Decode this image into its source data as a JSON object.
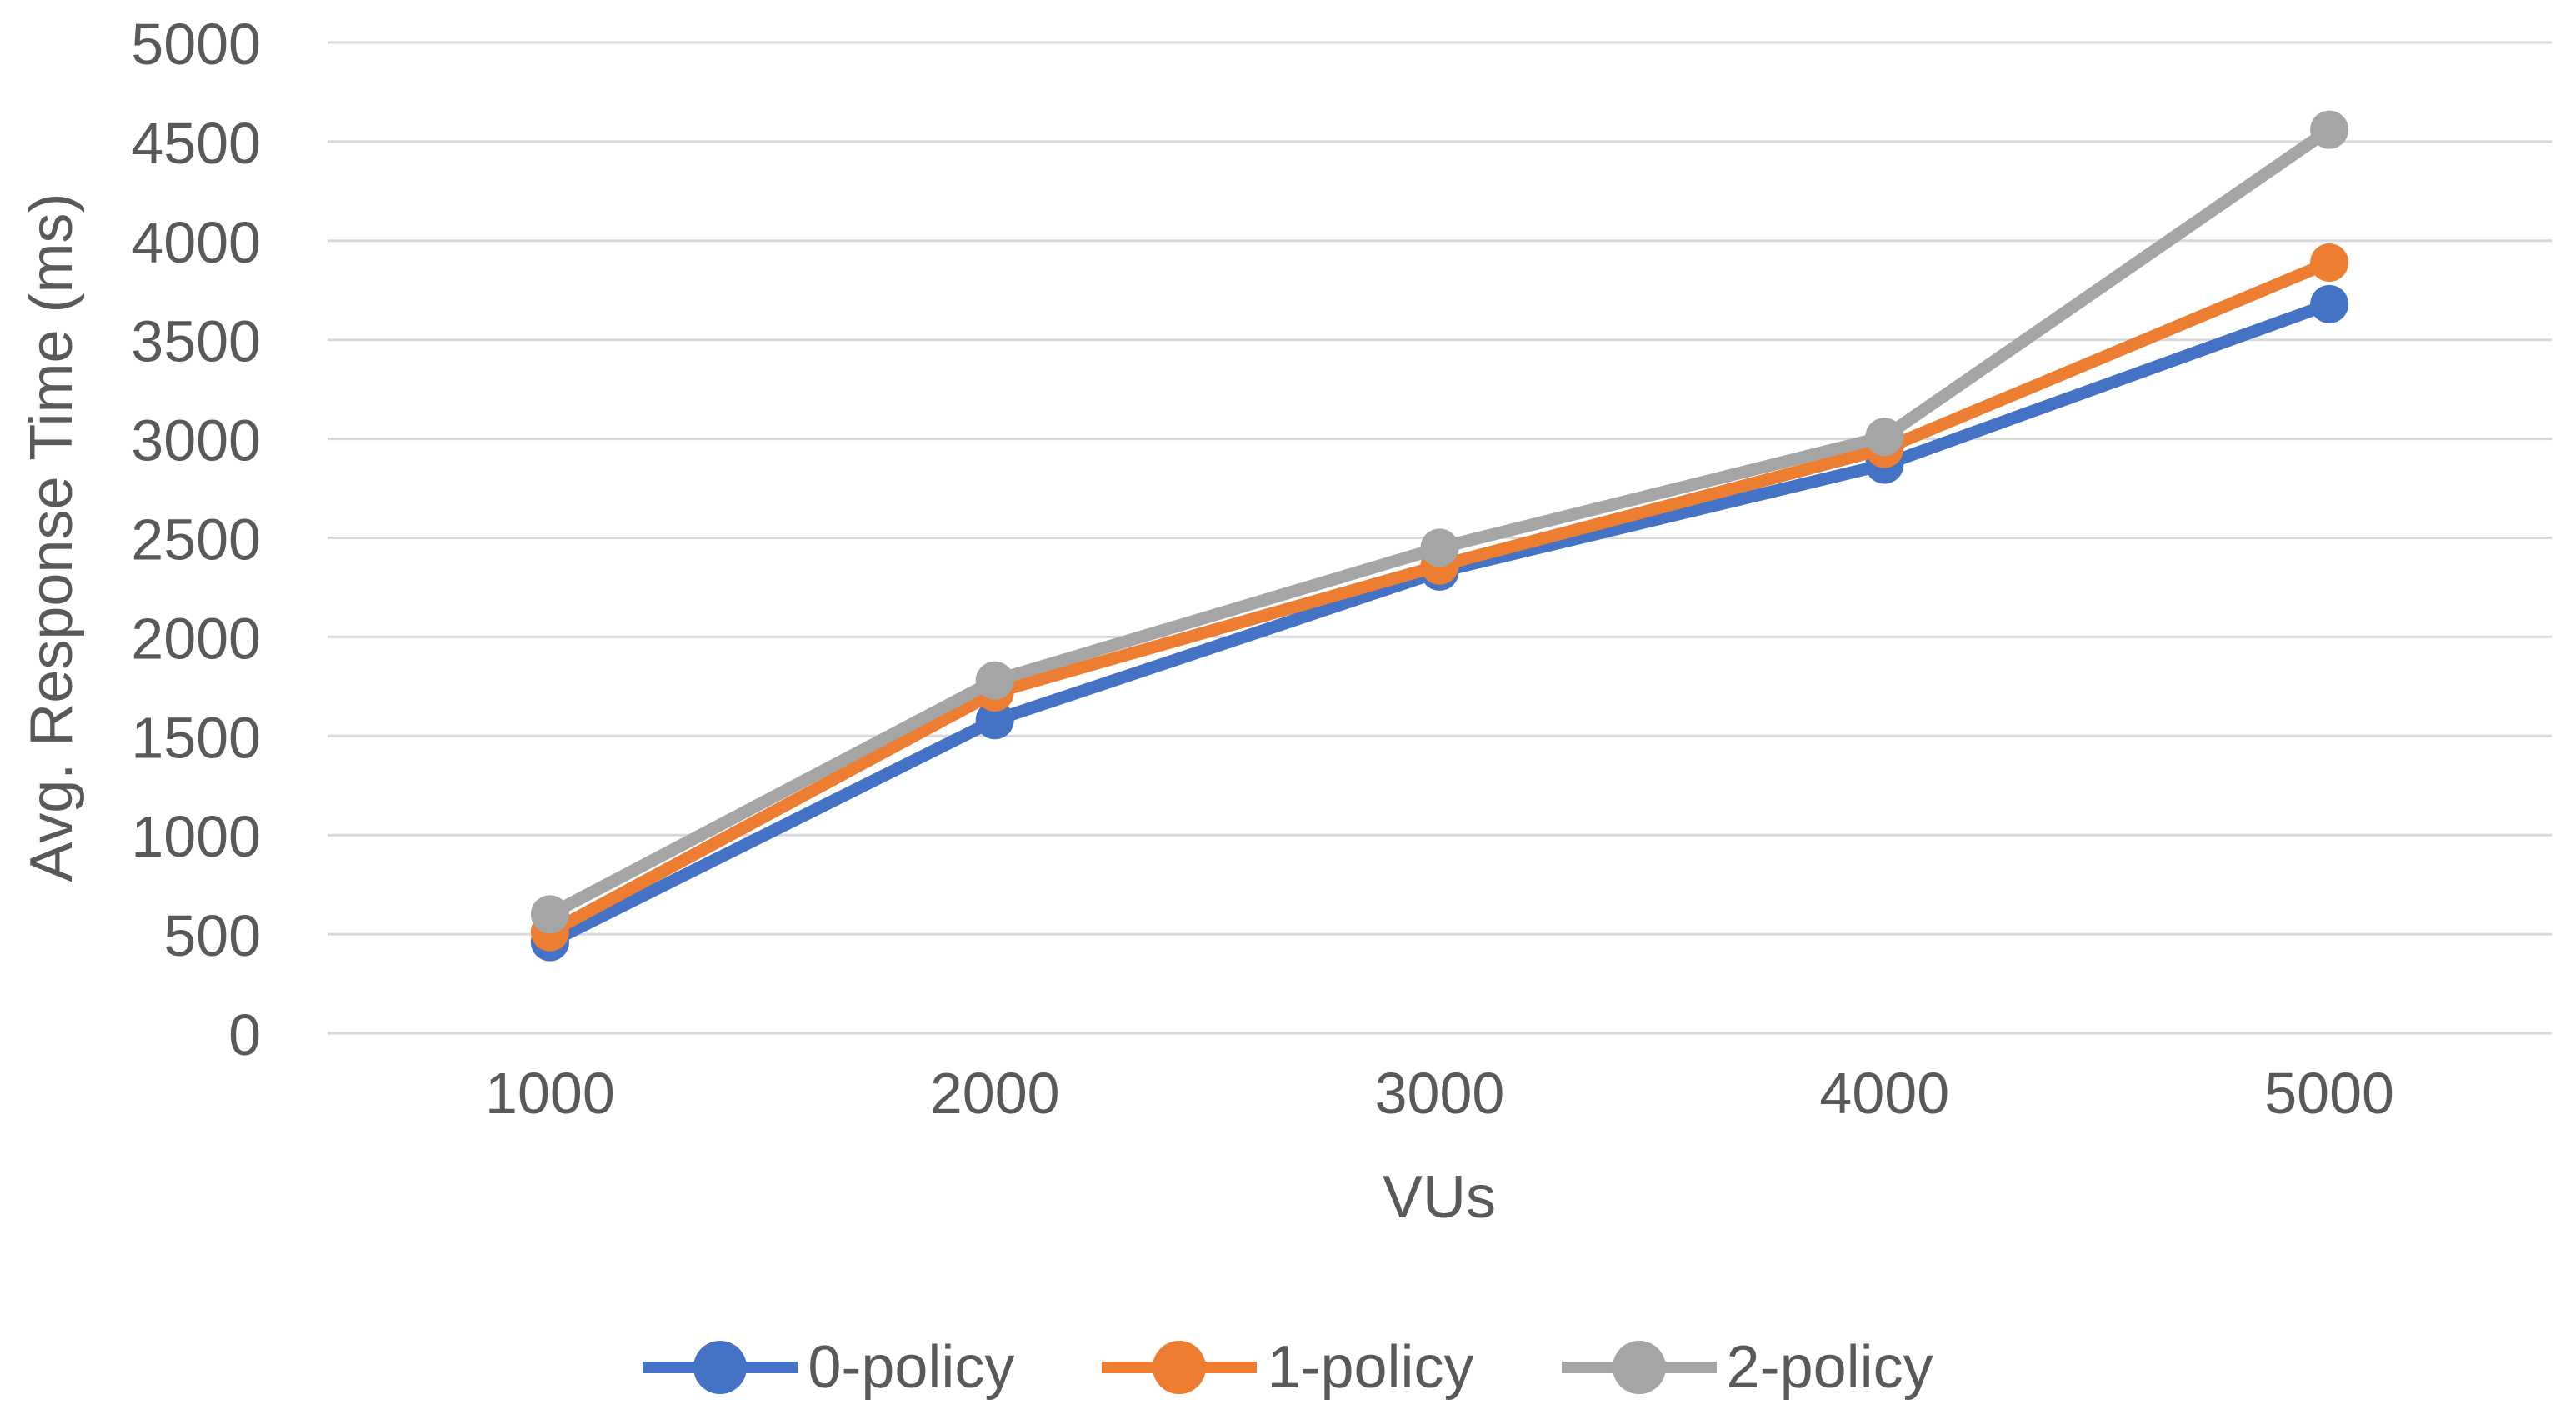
{
  "chart_data": {
    "type": "line",
    "title": "",
    "xlabel": "VUs",
    "ylabel": "Avg. Response Time (ms)",
    "categories": [
      "1000",
      "2000",
      "3000",
      "4000",
      "5000"
    ],
    "series": [
      {
        "name": "0-policy",
        "color": "#4472C4",
        "values": [
          460,
          1580,
          2330,
          2870,
          3680
        ]
      },
      {
        "name": "1-policy",
        "color": "#ED7D31",
        "values": [
          510,
          1720,
          2360,
          2950,
          3890
        ]
      },
      {
        "name": "2-policy",
        "color": "#A5A5A5",
        "values": [
          600,
          1780,
          2450,
          3010,
          4560
        ]
      }
    ],
    "ylim": [
      0,
      5000
    ],
    "yticks": [
      0,
      500,
      1000,
      1500,
      2000,
      2500,
      3000,
      3500,
      4000,
      4500,
      5000
    ],
    "grid": "horizontal",
    "legend_position": "bottom",
    "axis_text_color": "#595959",
    "gridline_color": "#D9D9D9"
  }
}
